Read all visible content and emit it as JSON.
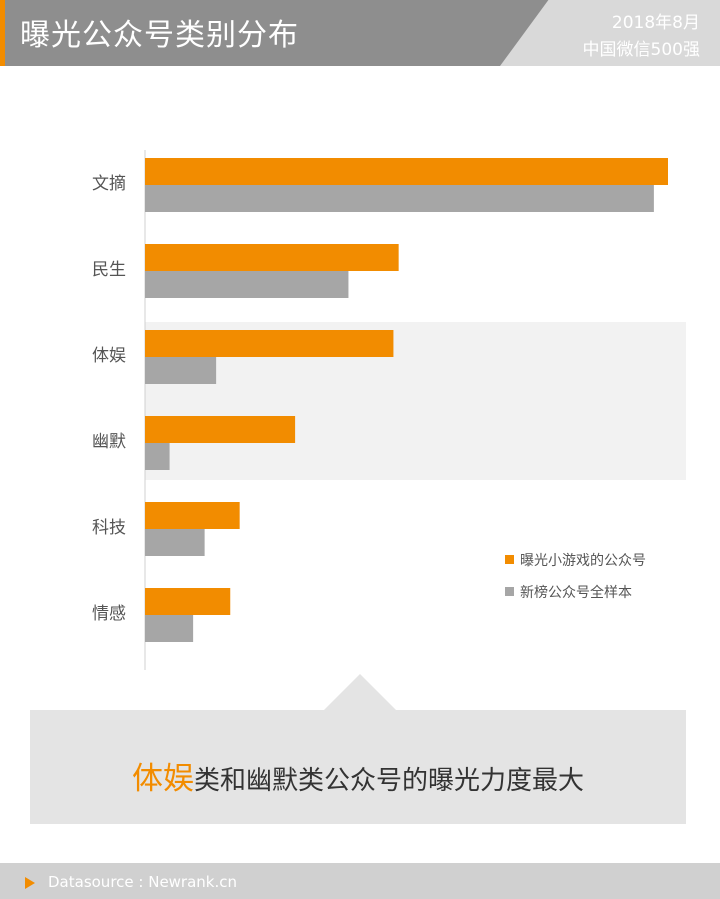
{
  "header": {
    "title": "曝光公众号类别分布",
    "date": "2018年8月",
    "subtitle": "中国微信500强"
  },
  "colors": {
    "accent": "#f28c00",
    "gray_bar": "#a6a6a6",
    "header_bg": "#8e8e8e",
    "highlight_band": "#f2f2f2"
  },
  "chart_data": {
    "type": "bar",
    "orientation": "horizontal",
    "categories": [
      "文摘",
      "民生",
      "体娱",
      "幽默",
      "科技",
      "情感"
    ],
    "series": [
      {
        "name": "曝光小游戏的公众号",
        "color": "#f28c00",
        "values": [
          100,
          48.5,
          47.5,
          28.7,
          18.1,
          16.3
        ]
      },
      {
        "name": "新榜公众号全样本",
        "color": "#a6a6a6",
        "values": [
          97.3,
          38.9,
          13.6,
          4.7,
          11.4,
          9.2
        ]
      }
    ],
    "xlim": [
      0,
      100
    ],
    "axis_visible": false,
    "grid": false,
    "legend_position": "right",
    "highlighted_categories": [
      "体娱",
      "幽默"
    ]
  },
  "callout": {
    "highlight": "体娱",
    "rest": "类和幽默类公众号的曝光力度最大"
  },
  "footer": {
    "source": "Datasource : Newrank.cn"
  }
}
